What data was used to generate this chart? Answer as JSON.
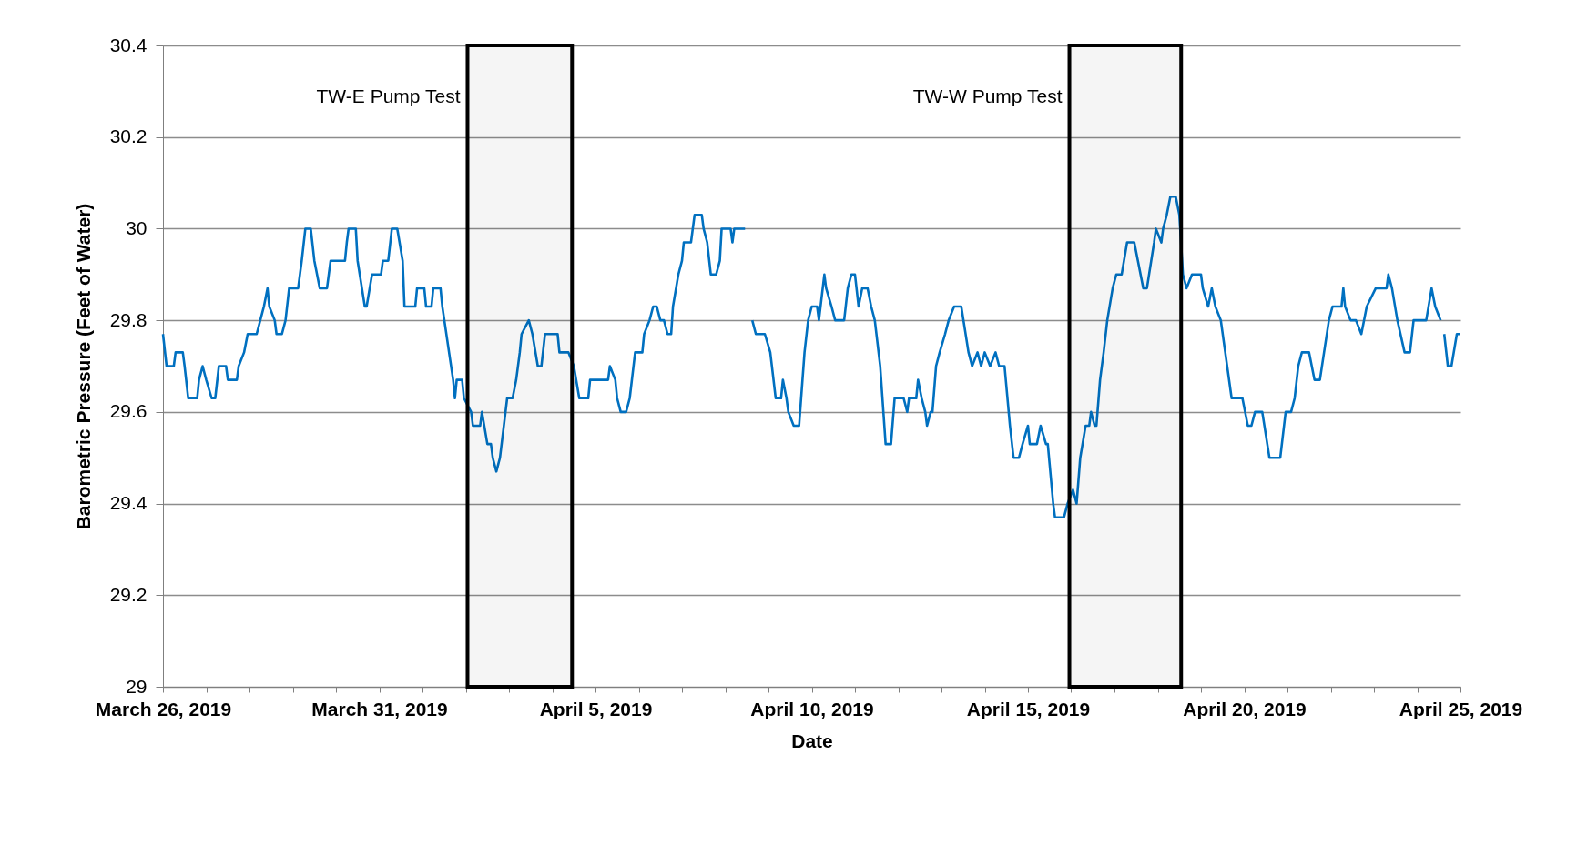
{
  "chart_data": {
    "type": "line",
    "xlabel": "Date",
    "ylabel": "Barometric Pressure (Feet of Water)",
    "color": "#0070c0",
    "grid": "y",
    "ylim": [
      29,
      30.4
    ],
    "yticks": [
      29,
      29.2,
      29.4,
      29.6,
      29.8,
      30,
      30.2,
      30.4
    ],
    "xlim": [
      "2019-03-26T00:00",
      "2019-04-25T00:00"
    ],
    "xticks": [
      {
        "value": "2019-03-26T00:00",
        "label": "March 26, 2019"
      },
      {
        "value": "2019-03-27T00:00",
        "label": null
      },
      {
        "value": "2019-03-28T00:00",
        "label": null
      },
      {
        "value": "2019-03-29T00:00",
        "label": null
      },
      {
        "value": "2019-03-30T00:00",
        "label": null
      },
      {
        "value": "2019-03-31T00:00",
        "label": "March 31, 2019"
      },
      {
        "value": "2019-04-01T00:00",
        "label": null
      },
      {
        "value": "2019-04-02T00:00",
        "label": null
      },
      {
        "value": "2019-04-03T00:00",
        "label": null
      },
      {
        "value": "2019-04-04T00:00",
        "label": null
      },
      {
        "value": "2019-04-05T00:00",
        "label": "April 5, 2019"
      },
      {
        "value": "2019-04-06T00:00",
        "label": null
      },
      {
        "value": "2019-04-07T00:00",
        "label": null
      },
      {
        "value": "2019-04-08T00:00",
        "label": null
      },
      {
        "value": "2019-04-09T00:00",
        "label": null
      },
      {
        "value": "2019-04-10T00:00",
        "label": "April 10, 2019"
      },
      {
        "value": "2019-04-11T00:00",
        "label": null
      },
      {
        "value": "2019-04-12T00:00",
        "label": null
      },
      {
        "value": "2019-04-13T00:00",
        "label": null
      },
      {
        "value": "2019-04-14T00:00",
        "label": null
      },
      {
        "value": "2019-04-15T00:00",
        "label": "April 15, 2019"
      },
      {
        "value": "2019-04-16T00:00",
        "label": null
      },
      {
        "value": "2019-04-17T00:00",
        "label": null
      },
      {
        "value": "2019-04-18T00:00",
        "label": null
      },
      {
        "value": "2019-04-19T00:00",
        "label": null
      },
      {
        "value": "2019-04-20T00:00",
        "label": "April 20, 2019"
      },
      {
        "value": "2019-04-21T00:00",
        "label": null
      },
      {
        "value": "2019-04-22T00:00",
        "label": null
      },
      {
        "value": "2019-04-23T00:00",
        "label": null
      },
      {
        "value": "2019-04-24T00:00",
        "label": null
      },
      {
        "value": "2019-04-25T00:00",
        "label": "April 25, 2019"
      }
    ],
    "bands": [
      {
        "axis": "x",
        "from": "2019-04-02T01:00",
        "to": "2019-04-04T11:00",
        "label": "TW-E Pump Test",
        "color": "#000000"
      },
      {
        "axis": "x",
        "from": "2019-04-15T23:00",
        "to": "2019-04-18T13:00",
        "label": "TW-W Pump Test",
        "color": "#000000"
      }
    ],
    "x": [
      "2019-03-26T00:00",
      "2019-03-26T02:00",
      "2019-03-26T06:00",
      "2019-03-26T07:00",
      "2019-03-26T11:00",
      "2019-03-26T12:00",
      "2019-03-26T14:00",
      "2019-03-26T19:00",
      "2019-03-26T20:00",
      "2019-03-26T22:00",
      "2019-03-27T00:00",
      "2019-03-27T03:00",
      "2019-03-27T05:00",
      "2019-03-27T07:00",
      "2019-03-27T11:00",
      "2019-03-27T12:00",
      "2019-03-27T17:00",
      "2019-03-27T18:00",
      "2019-03-27T21:00",
      "2019-03-27T23:00",
      "2019-03-28T04:00",
      "2019-03-28T06:00",
      "2019-03-28T08:00",
      "2019-03-28T10:00",
      "2019-03-28T11:00",
      "2019-03-28T14:00",
      "2019-03-28T15:00",
      "2019-03-28T18:00",
      "2019-03-28T20:00",
      "2019-03-28T22:00",
      "2019-03-29T03:00",
      "2019-03-29T04:00",
      "2019-03-29T05:00",
      "2019-03-29T07:00",
      "2019-03-29T10:00",
      "2019-03-29T12:00",
      "2019-03-29T15:00",
      "2019-03-29T19:00",
      "2019-03-29T20:00",
      "2019-03-29T21:00",
      "2019-03-30T05:00",
      "2019-03-30T06:00",
      "2019-03-30T07:00",
      "2019-03-30T11:00",
      "2019-03-30T12:00",
      "2019-03-30T16:00",
      "2019-03-30T17:00",
      "2019-03-30T20:00",
      "2019-03-31T01:00",
      "2019-03-31T02:00",
      "2019-03-31T05:00",
      "2019-03-31T07:00",
      "2019-03-31T10:00",
      "2019-03-31T13:00",
      "2019-03-31T14:00",
      "2019-03-31T20:00",
      "2019-03-31T21:00",
      "2019-04-01T01:00",
      "2019-04-01T02:00",
      "2019-04-01T05:00",
      "2019-04-01T06:00",
      "2019-04-01T10:00",
      "2019-04-01T11:00",
      "2019-04-01T17:00",
      "2019-04-01T18:00",
      "2019-04-01T19:00",
      "2019-04-01T22:00",
      "2019-04-01T23:00",
      "2019-04-02T03:00",
      "2019-04-02T04:00",
      "2019-04-02T08:00",
      "2019-04-02T09:00",
      "2019-04-02T12:00",
      "2019-04-02T14:00",
      "2019-04-02T15:00",
      "2019-04-02T17:00",
      "2019-04-02T19:00",
      "2019-04-02T23:00",
      "2019-04-03T02:00",
      "2019-04-03T04:00",
      "2019-04-03T06:00",
      "2019-04-03T07:00",
      "2019-04-03T11:00",
      "2019-04-03T13:00",
      "2019-04-03T16:00",
      "2019-04-03T18:00",
      "2019-04-03T20:00",
      "2019-04-04T03:00",
      "2019-04-04T04:00",
      "2019-04-04T09:00",
      "2019-04-04T12:00",
      "2019-04-04T15:00",
      "2019-04-04T20:00",
      "2019-04-04T21:00",
      "2019-04-05T07:00",
      "2019-04-05T08:00",
      "2019-04-05T11:00",
      "2019-04-05T12:00",
      "2019-04-05T14:00",
      "2019-04-05T17:00",
      "2019-04-05T19:00",
      "2019-04-05T22:00",
      "2019-04-06T02:00",
      "2019-04-06T03:00",
      "2019-04-06T06:00",
      "2019-04-06T08:00",
      "2019-04-06T10:00",
      "2019-04-06T12:00",
      "2019-04-06T14:00",
      "2019-04-06T16:00",
      "2019-04-06T18:00",
      "2019-04-06T19:00",
      "2019-04-06T22:00",
      "2019-04-07T00:00",
      "2019-04-07T01:00",
      "2019-04-07T05:00",
      "2019-04-07T07:00",
      "2019-04-07T11:00",
      "2019-04-07T12:00",
      "2019-04-07T14:00",
      "2019-04-07T16:00",
      "2019-04-07T19:00",
      "2019-04-07T21:00",
      "2019-04-07T22:00",
      "2019-04-08T03:00",
      "2019-04-08T04:00",
      "2019-04-08T05:00",
      "2019-04-08T11:00",
      "2019-04-08T13:00",
      "2019-04-08T15:00",
      "2019-04-08T17:00",
      "2019-04-08T22:00",
      "2019-04-09T01:00",
      "2019-04-09T04:00",
      "2019-04-09T07:00",
      "2019-04-09T08:00",
      "2019-04-09T10:00",
      "2019-04-09T11:00",
      "2019-04-09T14:00",
      "2019-04-09T17:00",
      "2019-04-09T20:00",
      "2019-04-09T22:00",
      "2019-04-10T00:00",
      "2019-04-10T03:00",
      "2019-04-10T04:00",
      "2019-04-10T07:00",
      "2019-04-10T08:00",
      "2019-04-10T11:00",
      "2019-04-10T13:00",
      "2019-04-10T18:00",
      "2019-04-10T20:00",
      "2019-04-10T22:00",
      "2019-04-11T00:00",
      "2019-04-11T02:00",
      "2019-04-11T04:00",
      "2019-04-11T07:00",
      "2019-04-11T09:00",
      "2019-04-11T11:00",
      "2019-04-11T14:00",
      "2019-04-11T17:00",
      "2019-04-11T20:00",
      "2019-04-11T22:00",
      "2019-04-12T03:00",
      "2019-04-12T05:00",
      "2019-04-12T06:00",
      "2019-04-12T10:00",
      "2019-04-12T11:00",
      "2019-04-12T13:00",
      "2019-04-12T15:00",
      "2019-04-12T16:00",
      "2019-04-12T18:00",
      "2019-04-12T19:00",
      "2019-04-12T21:00",
      "2019-04-12T23:00",
      "2019-04-13T02:00",
      "2019-04-13T04:00",
      "2019-04-13T07:00",
      "2019-04-13T11:00",
      "2019-04-13T15:00",
      "2019-04-13T17:00",
      "2019-04-13T20:00",
      "2019-04-13T22:00",
      "2019-04-14T00:00",
      "2019-04-14T03:00",
      "2019-04-14T06:00",
      "2019-04-14T08:00",
      "2019-04-14T11:00",
      "2019-04-14T14:00",
      "2019-04-14T16:00",
      "2019-04-14T19:00",
      "2019-04-14T21:00",
      "2019-04-15T00:00",
      "2019-04-15T01:00",
      "2019-04-15T05:00",
      "2019-04-15T07:00",
      "2019-04-15T10:00",
      "2019-04-15T11:00",
      "2019-04-15T14:00",
      "2019-04-15T15:00",
      "2019-04-15T20:00",
      "2019-04-15T22:00",
      "2019-04-16T01:00",
      "2019-04-16T03:00",
      "2019-04-16T05:00",
      "2019-04-16T08:00",
      "2019-04-16T10:00",
      "2019-04-16T11:00",
      "2019-04-16T13:00",
      "2019-04-16T14:00",
      "2019-04-16T16:00",
      "2019-04-16T18:00",
      "2019-04-16T20:00",
      "2019-04-16T23:00",
      "2019-04-17T01:00",
      "2019-04-17T04:00",
      "2019-04-17T07:00",
      "2019-04-17T11:00",
      "2019-04-17T13:00",
      "2019-04-17T16:00",
      "2019-04-17T18:00",
      "2019-04-17T22:00",
      "2019-04-17T23:00",
      "2019-04-18T02:00",
      "2019-04-18T03:00",
      "2019-04-18T05:00",
      "2019-04-18T07:00",
      "2019-04-18T10:00",
      "2019-04-18T12:00",
      "2019-04-18T14:00",
      "2019-04-18T16:00",
      "2019-04-18T19:00",
      "2019-04-19T00:00",
      "2019-04-19T01:00",
      "2019-04-19T04:00",
      "2019-04-19T06:00",
      "2019-04-19T08:00",
      "2019-04-19T11:00",
      "2019-04-19T17:00",
      "2019-04-19T23:00",
      "2019-04-20T02:00",
      "2019-04-20T04:00",
      "2019-04-20T06:00",
      "2019-04-20T10:00",
      "2019-04-20T14:00",
      "2019-04-20T20:00",
      "2019-04-20T23:00",
      "2019-04-21T02:00",
      "2019-04-21T04:00",
      "2019-04-21T06:00",
      "2019-04-21T08:00",
      "2019-04-21T12:00",
      "2019-04-21T15:00",
      "2019-04-21T18:00",
      "2019-04-21T23:00",
      "2019-04-22T01:00",
      "2019-04-22T06:00",
      "2019-04-22T07:00",
      "2019-04-22T08:00",
      "2019-04-22T11:00",
      "2019-04-22T14:00",
      "2019-04-22T17:00",
      "2019-04-22T20:00",
      "2019-04-23T01:00",
      "2019-04-23T07:00",
      "2019-04-23T08:00",
      "2019-04-23T10:00",
      "2019-04-23T13:00",
      "2019-04-23T17:00",
      "2019-04-23T20:00",
      "2019-04-23T22:00",
      "2019-04-24T05:00",
      "2019-04-24T08:00",
      "2019-04-24T10:00",
      "2019-04-24T13:00",
      "2019-04-24T14:00",
      "2019-04-24T15:00",
      "2019-04-24T17:00",
      "2019-04-24T19:00",
      "2019-04-24T22:00",
      "2019-04-25T00:00"
    ],
    "values": [
      29.77,
      29.7,
      29.7,
      29.73,
      29.73,
      29.7,
      29.63,
      29.63,
      29.67,
      29.7,
      29.67,
      29.63,
      29.63,
      29.7,
      29.7,
      29.67,
      29.67,
      29.7,
      29.73,
      29.77,
      29.77,
      29.8,
      29.83,
      29.87,
      29.83,
      29.8,
      29.77,
      29.77,
      29.8,
      29.87,
      29.87,
      29.9,
      29.93,
      30.0,
      30.0,
      29.93,
      29.87,
      29.87,
      29.9,
      29.93,
      29.93,
      29.97,
      30.0,
      30.0,
      29.93,
      29.83,
      29.83,
      29.9,
      29.9,
      29.93,
      29.93,
      30.0,
      30.0,
      29.93,
      29.83,
      29.83,
      29.87,
      29.87,
      29.83,
      29.83,
      29.87,
      29.87,
      29.83,
      29.67,
      29.63,
      29.67,
      29.67,
      29.63,
      29.6,
      29.57,
      29.57,
      29.6,
      29.53,
      29.53,
      29.5,
      29.47,
      29.5,
      29.63,
      29.63,
      29.67,
      29.73,
      29.77,
      29.8,
      29.77,
      29.7,
      29.7,
      29.77,
      29.77,
      29.73,
      29.73,
      29.7,
      29.63,
      29.63,
      29.67,
      29.67,
      29.7,
      29.67,
      29.63,
      29.6,
      29.6,
      29.63,
      29.73,
      29.73,
      29.77,
      29.8,
      29.83,
      29.83,
      29.8,
      29.8,
      29.77,
      29.77,
      29.83,
      29.9,
      29.93,
      29.97,
      29.97,
      30.03,
      30.03,
      30.0,
      29.97,
      29.9,
      29.9,
      29.93,
      30.0,
      30.0,
      29.97,
      30.0,
      30.0,
      null,
      29.8,
      29.77,
      29.77,
      29.73,
      29.63,
      29.63,
      29.67,
      29.63,
      29.6,
      29.57,
      29.57,
      29.73,
      29.8,
      29.83,
      29.83,
      29.8,
      29.9,
      29.87,
      29.83,
      29.8,
      29.8,
      29.87,
      29.9,
      29.9,
      29.83,
      29.87,
      29.87,
      29.83,
      29.8,
      29.7,
      29.53,
      29.53,
      29.63,
      29.63,
      29.6,
      29.63,
      29.63,
      29.67,
      29.63,
      29.6,
      29.57,
      29.6,
      29.6,
      29.7,
      29.73,
      29.77,
      29.8,
      29.83,
      29.83,
      29.73,
      29.7,
      29.73,
      29.7,
      29.73,
      29.7,
      29.73,
      29.7,
      29.7,
      29.57,
      29.5,
      29.5,
      29.53,
      29.57,
      29.53,
      29.53,
      29.57,
      29.53,
      29.53,
      29.4,
      29.37,
      29.37,
      29.4,
      29.43,
      29.4,
      29.5,
      29.57,
      29.57,
      29.6,
      29.57,
      29.57,
      29.67,
      29.73,
      29.8,
      29.87,
      29.9,
      29.9,
      29.97,
      29.97,
      29.93,
      29.87,
      29.87,
      29.97,
      30.0,
      29.97,
      30.0,
      30.03,
      30.07,
      30.07,
      30.03,
      29.9,
      29.87,
      29.9,
      29.9,
      29.87,
      29.83,
      29.87,
      29.83,
      29.8,
      29.63,
      29.63,
      29.57,
      29.57,
      29.6,
      29.6,
      29.5,
      29.5,
      29.6,
      29.6,
      29.63,
      29.7,
      29.73,
      29.73,
      29.67,
      29.67,
      29.8,
      29.83,
      29.83,
      29.87,
      29.83,
      29.8,
      29.8,
      29.77,
      29.83,
      29.87,
      29.87,
      29.9,
      29.87,
      29.8,
      29.73,
      29.73,
      29.8,
      29.8,
      29.87,
      29.83,
      29.8,
      null,
      29.77,
      29.7,
      29.7,
      29.77,
      29.77
    ]
  }
}
